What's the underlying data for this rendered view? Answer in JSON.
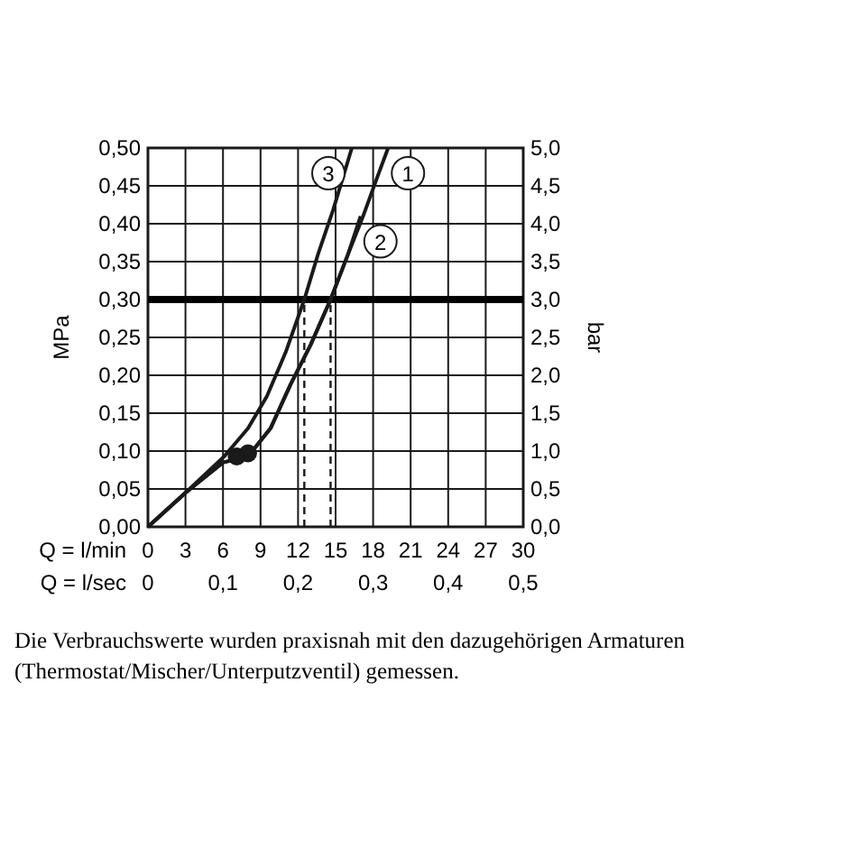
{
  "chart_data": {
    "type": "line",
    "xlabel": "Q = l/min",
    "x2label": "Q = l/sec",
    "ylabel": "MPa",
    "y2label": "bar",
    "xlim": [
      0,
      30
    ],
    "xticks": [
      0,
      3,
      6,
      9,
      12,
      15,
      18,
      21,
      24,
      27,
      30
    ],
    "x2lim": [
      0,
      0.5
    ],
    "x2ticks": [
      0,
      {
        "value": 0.1,
        "label": "0,1"
      },
      {
        "value": 0.2,
        "label": "0,2"
      },
      {
        "value": 0.3,
        "label": "0,3"
      },
      {
        "value": 0.4,
        "label": "0,4"
      },
      {
        "value": 0.5,
        "label": "0,5"
      }
    ],
    "ylim": [
      0,
      0.5
    ],
    "yticks": [
      {
        "value": 0,
        "label": "0,00"
      },
      {
        "value": 0.05,
        "label": "0,05"
      },
      {
        "value": 0.1,
        "label": "0,10"
      },
      {
        "value": 0.15,
        "label": "0,15"
      },
      {
        "value": 0.2,
        "label": "0,20"
      },
      {
        "value": 0.25,
        "label": "0,25"
      },
      {
        "value": 0.3,
        "label": "0,30"
      },
      {
        "value": 0.35,
        "label": "0,35"
      },
      {
        "value": 0.4,
        "label": "0,40"
      },
      {
        "value": 0.45,
        "label": "0,45"
      },
      {
        "value": 0.5,
        "label": "0,50"
      }
    ],
    "y2lim": [
      0,
      5
    ],
    "y2ticks": [
      {
        "value": 0,
        "label": "0,0"
      },
      {
        "value": 0.5,
        "label": "0,5"
      },
      {
        "value": 1,
        "label": "1,0"
      },
      {
        "value": 1.5,
        "label": "1,5"
      },
      {
        "value": 2,
        "label": "2,0"
      },
      {
        "value": 2.5,
        "label": "2,5"
      },
      {
        "value": 3,
        "label": "3,0"
      },
      {
        "value": 3.5,
        "label": "3,5"
      },
      {
        "value": 4,
        "label": "4,0"
      },
      {
        "value": 4.5,
        "label": "4,5"
      },
      {
        "value": 5,
        "label": "5,0"
      }
    ],
    "grid": true,
    "marker": "none",
    "line_style": "solid",
    "series": [
      {
        "name": "3",
        "color": "#1a1a1a",
        "x": [
          0,
          3,
          6.1,
          8,
          9.5,
          11,
          12.5,
          13.6,
          14.8,
          16.3
        ],
        "values": [
          0,
          0.045,
          0.093,
          0.13,
          0.172,
          0.23,
          0.3,
          0.36,
          0.418,
          0.5
        ]
      },
      {
        "name": "2",
        "color": "#1a1a1a",
        "x": [
          0,
          3,
          6,
          8,
          9.8,
          11.4,
          13,
          14.6,
          16,
          17
        ],
        "values": [
          0,
          0.045,
          0.085,
          0.093,
          0.13,
          0.188,
          0.24,
          0.3,
          0.36,
          0.41
        ]
      },
      {
        "name": "1",
        "color": "#1a1a1a",
        "x": [
          0,
          3,
          6,
          8,
          9.8,
          11.4,
          13,
          14.6,
          16,
          17.2,
          18.3,
          19.2
        ],
        "values": [
          0,
          0.045,
          0.085,
          0.093,
          0.13,
          0.188,
          0.24,
          0.3,
          0.36,
          0.41,
          0.46,
          0.5
        ]
      },
      {
        "type": "scatter",
        "color": "#1a1a1a",
        "marker": "circle",
        "x": [
          7.1,
          8.0
        ],
        "values": [
          0.093,
          0.097
        ]
      }
    ],
    "ref_lines": [
      {
        "axis": "y",
        "value": 0.3,
        "color": "#000000"
      },
      {
        "axis": "x",
        "value": 12.5,
        "line_style": "dashed",
        "color": "#1a1a1a"
      },
      {
        "axis": "x",
        "value": 14.6,
        "line_style": "dashed",
        "color": "#1a1a1a"
      }
    ],
    "annotations": [
      "Die Verbrauchswerte wurden praxisnah mit den dazugehörigen Armaturen (Thermostat/Mischer/Unterputzventil) gemessen."
    ]
  }
}
